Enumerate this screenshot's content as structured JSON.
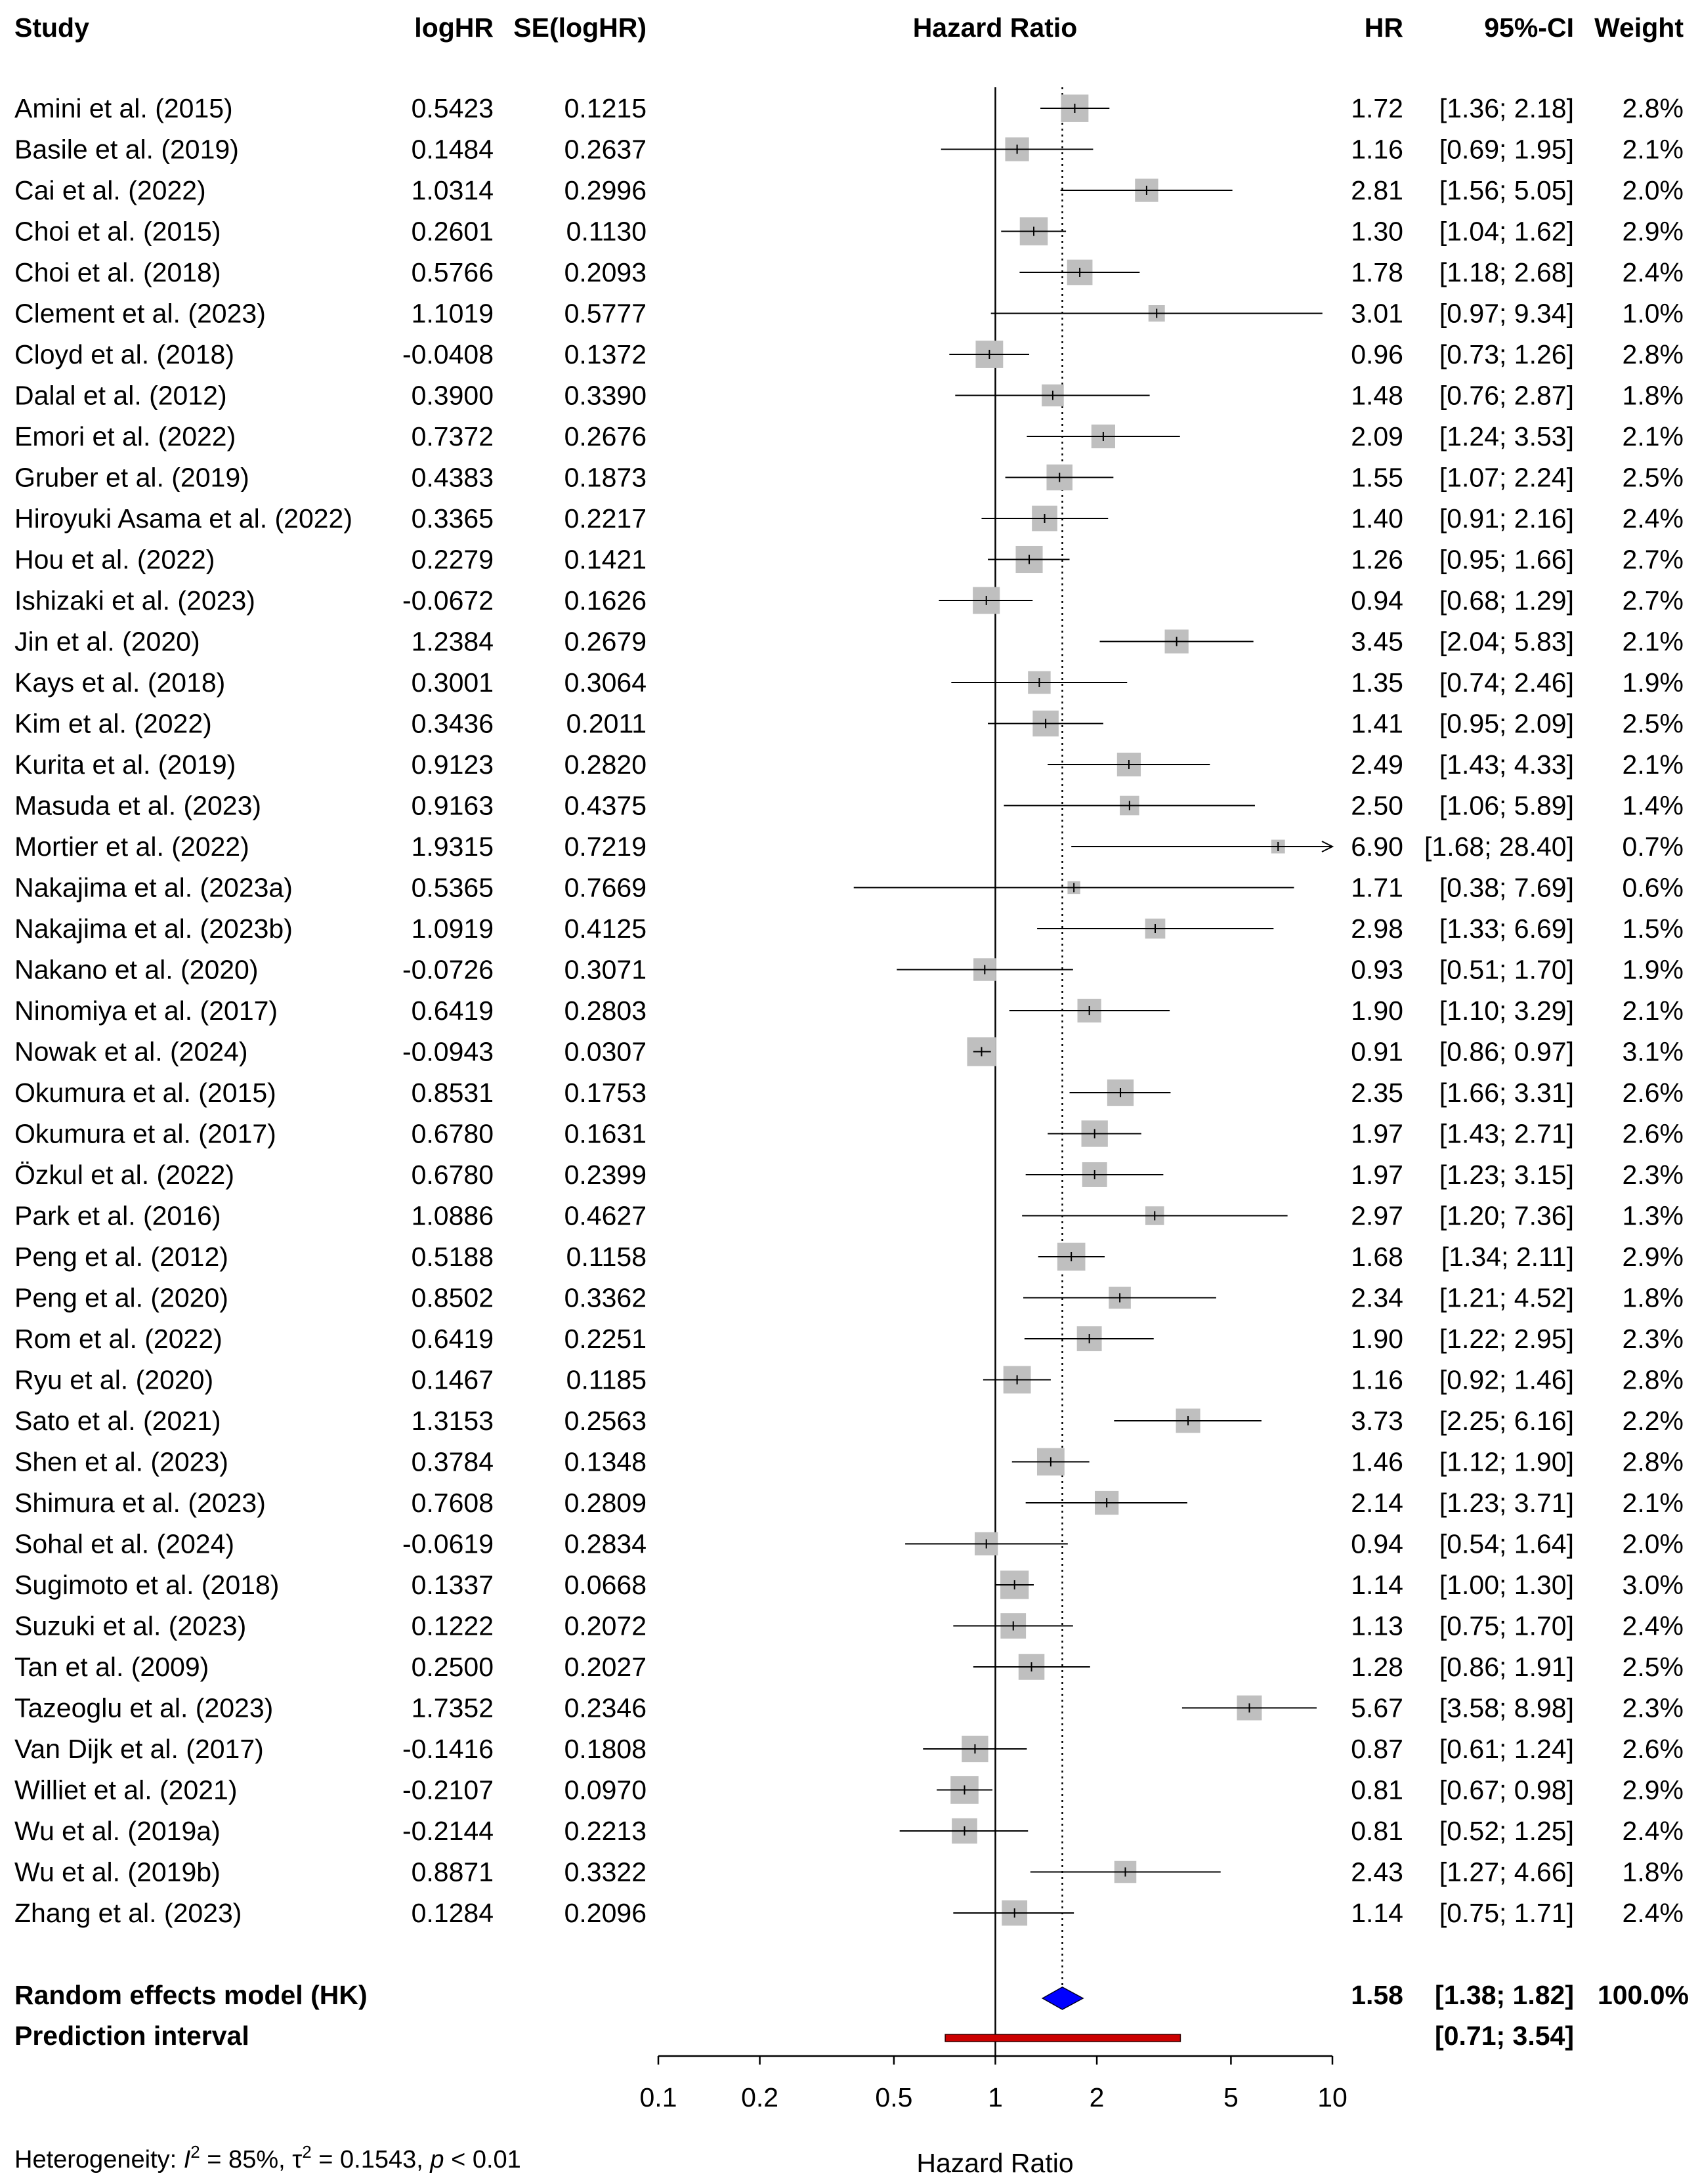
{
  "chart_data": {
    "type": "forest",
    "title": "Hazard Ratio",
    "xlabel": "Hazard Ratio",
    "x_scale": "log",
    "xlim": [
      0.1,
      10
    ],
    "x_ticks": [
      0.1,
      0.2,
      0.5,
      1,
      2,
      5,
      10
    ],
    "x_tick_labels": [
      "0.1",
      "0.2",
      "0.5",
      "1",
      "2",
      "5",
      "10"
    ],
    "null_value": 1,
    "columns": {
      "study": "Study",
      "loghr": "logHR",
      "se": "SE(logHR)",
      "plot": "Hazard Ratio",
      "hr": "HR",
      "ci": "95%-CI",
      "weight": "Weight"
    },
    "studies": [
      {
        "name": "Amini et al. (2015)",
        "loghr": "0.5423",
        "se": "0.1215",
        "hr": 1.72,
        "lo": 1.36,
        "hi": 2.18,
        "hr_text": "1.72",
        "ci_text": "[1.36; 2.18]",
        "weight": 2.8,
        "weight_text": "2.8%"
      },
      {
        "name": "Basile et al. (2019)",
        "loghr": "0.1484",
        "se": "0.2637",
        "hr": 1.16,
        "lo": 0.69,
        "hi": 1.95,
        "hr_text": "1.16",
        "ci_text": "[0.69; 1.95]",
        "weight": 2.1,
        "weight_text": "2.1%"
      },
      {
        "name": "Cai et al. (2022)",
        "loghr": "1.0314",
        "se": "0.2996",
        "hr": 2.81,
        "lo": 1.56,
        "hi": 5.05,
        "hr_text": "2.81",
        "ci_text": "[1.56; 5.05]",
        "weight": 2.0,
        "weight_text": "2.0%"
      },
      {
        "name": "Choi et al. (2015)",
        "loghr": "0.2601",
        "se": "0.1130",
        "hr": 1.3,
        "lo": 1.04,
        "hi": 1.62,
        "hr_text": "1.30",
        "ci_text": "[1.04; 1.62]",
        "weight": 2.9,
        "weight_text": "2.9%"
      },
      {
        "name": "Choi et al. (2018)",
        "loghr": "0.5766",
        "se": "0.2093",
        "hr": 1.78,
        "lo": 1.18,
        "hi": 2.68,
        "hr_text": "1.78",
        "ci_text": "[1.18; 2.68]",
        "weight": 2.4,
        "weight_text": "2.4%"
      },
      {
        "name": "Clement et al. (2023)",
        "loghr": "1.1019",
        "se": "0.5777",
        "hr": 3.01,
        "lo": 0.97,
        "hi": 9.34,
        "hr_text": "3.01",
        "ci_text": "[0.97; 9.34]",
        "weight": 1.0,
        "weight_text": "1.0%"
      },
      {
        "name": "Cloyd et al. (2018)",
        "loghr": "-0.0408",
        "se": "0.1372",
        "hr": 0.96,
        "lo": 0.73,
        "hi": 1.26,
        "hr_text": "0.96",
        "ci_text": "[0.73; 1.26]",
        "weight": 2.8,
        "weight_text": "2.8%"
      },
      {
        "name": "Dalal et al. (2012)",
        "loghr": "0.3900",
        "se": "0.3390",
        "hr": 1.48,
        "lo": 0.76,
        "hi": 2.87,
        "hr_text": "1.48",
        "ci_text": "[0.76; 2.87]",
        "weight": 1.8,
        "weight_text": "1.8%"
      },
      {
        "name": "Emori et al. (2022)",
        "loghr": "0.7372",
        "se": "0.2676",
        "hr": 2.09,
        "lo": 1.24,
        "hi": 3.53,
        "hr_text": "2.09",
        "ci_text": "[1.24; 3.53]",
        "weight": 2.1,
        "weight_text": "2.1%"
      },
      {
        "name": "Gruber et al. (2019)",
        "loghr": "0.4383",
        "se": "0.1873",
        "hr": 1.55,
        "lo": 1.07,
        "hi": 2.24,
        "hr_text": "1.55",
        "ci_text": "[1.07; 2.24]",
        "weight": 2.5,
        "weight_text": "2.5%"
      },
      {
        "name": "Hiroyuki Asama et al. (2022)",
        "loghr": "0.3365",
        "se": "0.2217",
        "hr": 1.4,
        "lo": 0.91,
        "hi": 2.16,
        "hr_text": "1.40",
        "ci_text": "[0.91; 2.16]",
        "weight": 2.4,
        "weight_text": "2.4%"
      },
      {
        "name": "Hou et al. (2022)",
        "loghr": "0.2279",
        "se": "0.1421",
        "hr": 1.26,
        "lo": 0.95,
        "hi": 1.66,
        "hr_text": "1.26",
        "ci_text": "[0.95; 1.66]",
        "weight": 2.7,
        "weight_text": "2.7%"
      },
      {
        "name": "Ishizaki et al. (2023)",
        "loghr": "-0.0672",
        "se": "0.1626",
        "hr": 0.94,
        "lo": 0.68,
        "hi": 1.29,
        "hr_text": "0.94",
        "ci_text": "[0.68; 1.29]",
        "weight": 2.7,
        "weight_text": "2.7%"
      },
      {
        "name": "Jin et al. (2020)",
        "loghr": "1.2384",
        "se": "0.2679",
        "hr": 3.45,
        "lo": 2.04,
        "hi": 5.83,
        "hr_text": "3.45",
        "ci_text": "[2.04; 5.83]",
        "weight": 2.1,
        "weight_text": "2.1%"
      },
      {
        "name": "Kays et al. (2018)",
        "loghr": "0.3001",
        "se": "0.3064",
        "hr": 1.35,
        "lo": 0.74,
        "hi": 2.46,
        "hr_text": "1.35",
        "ci_text": "[0.74; 2.46]",
        "weight": 1.9,
        "weight_text": "1.9%"
      },
      {
        "name": "Kim et al. (2022)",
        "loghr": "0.3436",
        "se": "0.2011",
        "hr": 1.41,
        "lo": 0.95,
        "hi": 2.09,
        "hr_text": "1.41",
        "ci_text": "[0.95; 2.09]",
        "weight": 2.5,
        "weight_text": "2.5%"
      },
      {
        "name": "Kurita et al. (2019)",
        "loghr": "0.9123",
        "se": "0.2820",
        "hr": 2.49,
        "lo": 1.43,
        "hi": 4.33,
        "hr_text": "2.49",
        "ci_text": "[1.43; 4.33]",
        "weight": 2.1,
        "weight_text": "2.1%"
      },
      {
        "name": "Masuda et al. (2023)",
        "loghr": "0.9163",
        "se": "0.4375",
        "hr": 2.5,
        "lo": 1.06,
        "hi": 5.89,
        "hr_text": "2.50",
        "ci_text": "[1.06; 5.89]",
        "weight": 1.4,
        "weight_text": "1.4%"
      },
      {
        "name": "Mortier et al. (2022)",
        "loghr": "1.9315",
        "se": "0.7219",
        "hr": 6.9,
        "lo": 1.68,
        "hi": 28.4,
        "hr_text": "6.90",
        "ci_text": "[1.68; 28.40]",
        "weight": 0.7,
        "weight_text": "0.7%"
      },
      {
        "name": "Nakajima et al. (2023a)",
        "loghr": "0.5365",
        "se": "0.7669",
        "hr": 1.71,
        "lo": 0.38,
        "hi": 7.69,
        "hr_text": "1.71",
        "ci_text": "[0.38; 7.69]",
        "weight": 0.6,
        "weight_text": "0.6%"
      },
      {
        "name": "Nakajima et al. (2023b)",
        "loghr": "1.0919",
        "se": "0.4125",
        "hr": 2.98,
        "lo": 1.33,
        "hi": 6.69,
        "hr_text": "2.98",
        "ci_text": "[1.33; 6.69]",
        "weight": 1.5,
        "weight_text": "1.5%"
      },
      {
        "name": "Nakano et al. (2020)",
        "loghr": "-0.0726",
        "se": "0.3071",
        "hr": 0.93,
        "lo": 0.51,
        "hi": 1.7,
        "hr_text": "0.93",
        "ci_text": "[0.51; 1.70]",
        "weight": 1.9,
        "weight_text": "1.9%"
      },
      {
        "name": "Ninomiya et al. (2017)",
        "loghr": "0.6419",
        "se": "0.2803",
        "hr": 1.9,
        "lo": 1.1,
        "hi": 3.29,
        "hr_text": "1.90",
        "ci_text": "[1.10; 3.29]",
        "weight": 2.1,
        "weight_text": "2.1%"
      },
      {
        "name": "Nowak et al. (2024)",
        "loghr": "-0.0943",
        "se": "0.0307",
        "hr": 0.91,
        "lo": 0.86,
        "hi": 0.97,
        "hr_text": "0.91",
        "ci_text": "[0.86; 0.97]",
        "weight": 3.1,
        "weight_text": "3.1%"
      },
      {
        "name": "Okumura et al. (2015)",
        "loghr": "0.8531",
        "se": "0.1753",
        "hr": 2.35,
        "lo": 1.66,
        "hi": 3.31,
        "hr_text": "2.35",
        "ci_text": "[1.66; 3.31]",
        "weight": 2.6,
        "weight_text": "2.6%"
      },
      {
        "name": "Okumura et al. (2017)",
        "loghr": "0.6780",
        "se": "0.1631",
        "hr": 1.97,
        "lo": 1.43,
        "hi": 2.71,
        "hr_text": "1.97",
        "ci_text": "[1.43; 2.71]",
        "weight": 2.6,
        "weight_text": "2.6%"
      },
      {
        "name": "Özkul et al. (2022)",
        "loghr": "0.6780",
        "se": "0.2399",
        "hr": 1.97,
        "lo": 1.23,
        "hi": 3.15,
        "hr_text": "1.97",
        "ci_text": "[1.23; 3.15]",
        "weight": 2.3,
        "weight_text": "2.3%"
      },
      {
        "name": "Park et al. (2016)",
        "loghr": "1.0886",
        "se": "0.4627",
        "hr": 2.97,
        "lo": 1.2,
        "hi": 7.36,
        "hr_text": "2.97",
        "ci_text": "[1.20; 7.36]",
        "weight": 1.3,
        "weight_text": "1.3%"
      },
      {
        "name": "Peng et al. (2012)",
        "loghr": "0.5188",
        "se": "0.1158",
        "hr": 1.68,
        "lo": 1.34,
        "hi": 2.11,
        "hr_text": "1.68",
        "ci_text": "[1.34; 2.11]",
        "weight": 2.9,
        "weight_text": "2.9%"
      },
      {
        "name": "Peng et al. (2020)",
        "loghr": "0.8502",
        "se": "0.3362",
        "hr": 2.34,
        "lo": 1.21,
        "hi": 4.52,
        "hr_text": "2.34",
        "ci_text": "[1.21; 4.52]",
        "weight": 1.8,
        "weight_text": "1.8%"
      },
      {
        "name": "Rom et al. (2022)",
        "loghr": "0.6419",
        "se": "0.2251",
        "hr": 1.9,
        "lo": 1.22,
        "hi": 2.95,
        "hr_text": "1.90",
        "ci_text": "[1.22; 2.95]",
        "weight": 2.3,
        "weight_text": "2.3%"
      },
      {
        "name": "Ryu et al. (2020)",
        "loghr": "0.1467",
        "se": "0.1185",
        "hr": 1.16,
        "lo": 0.92,
        "hi": 1.46,
        "hr_text": "1.16",
        "ci_text": "[0.92; 1.46]",
        "weight": 2.8,
        "weight_text": "2.8%"
      },
      {
        "name": "Sato et al. (2021)",
        "loghr": "1.3153",
        "se": "0.2563",
        "hr": 3.73,
        "lo": 2.25,
        "hi": 6.16,
        "hr_text": "3.73",
        "ci_text": "[2.25; 6.16]",
        "weight": 2.2,
        "weight_text": "2.2%"
      },
      {
        "name": "Shen et al. (2023)",
        "loghr": "0.3784",
        "se": "0.1348",
        "hr": 1.46,
        "lo": 1.12,
        "hi": 1.9,
        "hr_text": "1.46",
        "ci_text": "[1.12; 1.90]",
        "weight": 2.8,
        "weight_text": "2.8%"
      },
      {
        "name": "Shimura et al. (2023)",
        "loghr": "0.7608",
        "se": "0.2809",
        "hr": 2.14,
        "lo": 1.23,
        "hi": 3.71,
        "hr_text": "2.14",
        "ci_text": "[1.23; 3.71]",
        "weight": 2.1,
        "weight_text": "2.1%"
      },
      {
        "name": "Sohal et al. (2024)",
        "loghr": "-0.0619",
        "se": "0.2834",
        "hr": 0.94,
        "lo": 0.54,
        "hi": 1.64,
        "hr_text": "0.94",
        "ci_text": "[0.54; 1.64]",
        "weight": 2.0,
        "weight_text": "2.0%"
      },
      {
        "name": "Sugimoto et al. (2018)",
        "loghr": "0.1337",
        "se": "0.0668",
        "hr": 1.14,
        "lo": 1.0,
        "hi": 1.3,
        "hr_text": "1.14",
        "ci_text": "[1.00; 1.30]",
        "weight": 3.0,
        "weight_text": "3.0%"
      },
      {
        "name": "Suzuki et al. (2023)",
        "loghr": "0.1222",
        "se": "0.2072",
        "hr": 1.13,
        "lo": 0.75,
        "hi": 1.7,
        "hr_text": "1.13",
        "ci_text": "[0.75; 1.70]",
        "weight": 2.4,
        "weight_text": "2.4%"
      },
      {
        "name": "Tan et al. (2009)",
        "loghr": "0.2500",
        "se": "0.2027",
        "hr": 1.28,
        "lo": 0.86,
        "hi": 1.91,
        "hr_text": "1.28",
        "ci_text": "[0.86; 1.91]",
        "weight": 2.5,
        "weight_text": "2.5%"
      },
      {
        "name": "Tazeoglu et al. (2023)",
        "loghr": "1.7352",
        "se": "0.2346",
        "hr": 5.67,
        "lo": 3.58,
        "hi": 8.98,
        "hr_text": "5.67",
        "ci_text": "[3.58; 8.98]",
        "weight": 2.3,
        "weight_text": "2.3%"
      },
      {
        "name": "Van Dijk et al. (2017)",
        "loghr": "-0.1416",
        "se": "0.1808",
        "hr": 0.87,
        "lo": 0.61,
        "hi": 1.24,
        "hr_text": "0.87",
        "ci_text": "[0.61; 1.24]",
        "weight": 2.6,
        "weight_text": "2.6%"
      },
      {
        "name": "Williet et al. (2021)",
        "loghr": "-0.2107",
        "se": "0.0970",
        "hr": 0.81,
        "lo": 0.67,
        "hi": 0.98,
        "hr_text": "0.81",
        "ci_text": "[0.67; 0.98]",
        "weight": 2.9,
        "weight_text": "2.9%"
      },
      {
        "name": "Wu et al. (2019a)",
        "loghr": "-0.2144",
        "se": "0.2213",
        "hr": 0.81,
        "lo": 0.52,
        "hi": 1.25,
        "hr_text": "0.81",
        "ci_text": "[0.52; 1.25]",
        "weight": 2.4,
        "weight_text": "2.4%"
      },
      {
        "name": "Wu et al. (2019b)",
        "loghr": "0.8871",
        "se": "0.3322",
        "hr": 2.43,
        "lo": 1.27,
        "hi": 4.66,
        "hr_text": "2.43",
        "ci_text": "[1.27; 4.66]",
        "weight": 1.8,
        "weight_text": "1.8%"
      },
      {
        "name": "Zhang et al. (2023)",
        "loghr": "0.1284",
        "se": "0.2096",
        "hr": 1.14,
        "lo": 0.75,
        "hi": 1.71,
        "hr_text": "1.14",
        "ci_text": "[0.75; 1.71]",
        "weight": 2.4,
        "weight_text": "2.4%"
      }
    ],
    "pooled": {
      "label": "Random effects model (HK)",
      "hr": 1.58,
      "lo": 1.38,
      "hi": 1.82,
      "hr_text": "1.58",
      "ci_text": "[1.38; 1.82]",
      "weight_text": "100.0%"
    },
    "prediction": {
      "label": "Prediction interval",
      "lo": 0.71,
      "hi": 3.54,
      "ci_text": "[0.71; 3.54]"
    },
    "heterogeneity": {
      "prefix": "Heterogeneity: ",
      "i2_symbol": "I",
      "i2_sup": "2",
      "i2_value": " = 85%, ",
      "tau_symbol": "τ",
      "tau_sup": "2",
      "tau_value": " = 0.1543, ",
      "p_symbol": "p",
      "p_value": " < 0.01"
    },
    "colors": {
      "square": "#bfbfbf",
      "diamond": "#0000ff",
      "prediction_bar": "#cc0000",
      "line": "#000000"
    }
  }
}
